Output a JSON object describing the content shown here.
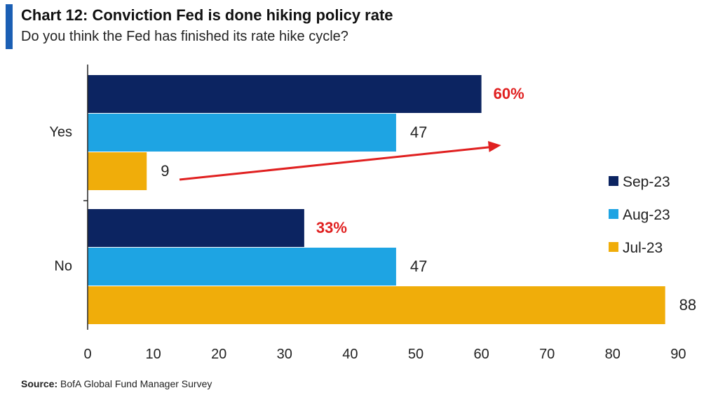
{
  "header": {
    "title": "Chart 12: Conviction Fed is done hiking policy rate",
    "subtitle": "Do you think the Fed has finished its rate hike cycle?",
    "accent_color": "#1b5fb4"
  },
  "footer": {
    "source_label": "Source:",
    "source_text": "BofA Global Fund Manager Survey"
  },
  "chart_data": {
    "type": "bar",
    "orientation": "horizontal",
    "categories": [
      "Yes",
      "No"
    ],
    "series": [
      {
        "name": "Sep-23",
        "color": "#0c2461",
        "values": [
          60,
          33
        ],
        "labels": [
          "60%",
          "33%"
        ]
      },
      {
        "name": "Aug-23",
        "color": "#1ea4e3",
        "values": [
          47,
          47
        ],
        "labels": [
          "47",
          "47"
        ]
      },
      {
        "name": "Jul-23",
        "color": "#f0ad0a",
        "values": [
          9,
          88
        ],
        "labels": [
          "9",
          "88"
        ]
      }
    ],
    "highlight_label_color": "#e02020",
    "xlim": [
      0,
      90
    ],
    "xticks": [
      0,
      10,
      20,
      30,
      40,
      50,
      60,
      70,
      80,
      90
    ],
    "grid": false,
    "legend_position": "right",
    "annotation": {
      "type": "arrow",
      "color": "#e02020",
      "from": {
        "x": 14,
        "y": "Yes"
      },
      "to": {
        "x": 63,
        "y": "Yes"
      }
    }
  }
}
